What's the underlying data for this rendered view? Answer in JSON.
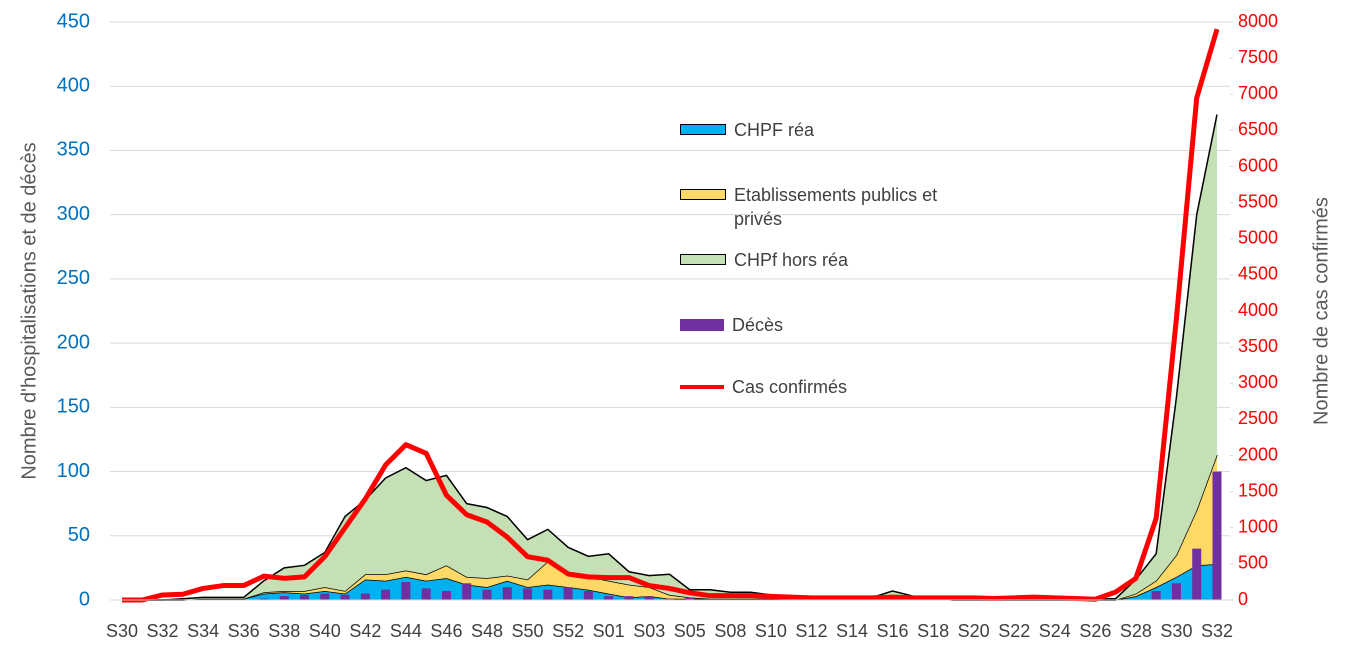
{
  "chart_data": {
    "type": "combo",
    "y_label": "Nombre d'hospitalisations et de décès",
    "y2_label": "Nombre de cas confirmés",
    "categories": [
      "S30",
      null,
      "S32",
      null,
      "S34",
      null,
      "S36",
      null,
      "S38",
      null,
      "S40",
      null,
      "S42",
      null,
      "S44",
      null,
      "S46",
      null,
      "S48",
      null,
      "S50",
      null,
      "S52",
      null,
      "S01",
      null,
      "S03",
      null,
      "S05",
      null,
      "S08",
      null,
      "S10",
      null,
      "S12",
      null,
      "S14",
      null,
      "S16",
      null,
      "S18",
      null,
      "S20",
      null,
      "S22",
      null,
      "S24",
      null,
      "S26",
      null,
      "S28",
      null,
      "S30",
      null,
      "S32"
    ],
    "ylim": [
      0,
      450
    ],
    "yticks": [
      0,
      50,
      100,
      150,
      200,
      250,
      300,
      350,
      400,
      450
    ],
    "y2lim": [
      0,
      8000
    ],
    "y2ticks": [
      0,
      500,
      1000,
      1500,
      2000,
      2500,
      3000,
      3500,
      4000,
      4500,
      5000,
      5500,
      6000,
      6500,
      7000,
      7500,
      8000
    ],
    "grid": true,
    "stacked": true,
    "series": [
      {
        "name": "CHPF réa",
        "type": "area",
        "color": "#00b0f0",
        "values": [
          0,
          0,
          0,
          0,
          1,
          1,
          1,
          5,
          6,
          5,
          7,
          5,
          16,
          15,
          18,
          15,
          17,
          12,
          10,
          15,
          10,
          12,
          10,
          8,
          5,
          2,
          3,
          1,
          1,
          1,
          1,
          1,
          1,
          1,
          1,
          1,
          1,
          1,
          1,
          1,
          1,
          0,
          0,
          0,
          0,
          0,
          0,
          0,
          0,
          0,
          3,
          10,
          18,
          27,
          28
        ]
      },
      {
        "name": "Etablissements publics et privés",
        "type": "area",
        "color": "#ffd966",
        "values": [
          0,
          0,
          0,
          0,
          0,
          0,
          0,
          1,
          1,
          2,
          3,
          2,
          4,
          5,
          5,
          5,
          10,
          6,
          7,
          4,
          6,
          18,
          10,
          10,
          10,
          10,
          7,
          3,
          1,
          0,
          0,
          0,
          0,
          0,
          0,
          0,
          0,
          0,
          0,
          0,
          0,
          0,
          0,
          0,
          0,
          0,
          0,
          0,
          0,
          0,
          2,
          5,
          17,
          43,
          85
        ]
      },
      {
        "name": "CHPf hors réa",
        "type": "area",
        "color": "#c5e0b4",
        "values": [
          0,
          0,
          0,
          1,
          1,
          1,
          1,
          9,
          18,
          20,
          27,
          58,
          58,
          75,
          80,
          73,
          70,
          57,
          55,
          46,
          31,
          25,
          21,
          16,
          21,
          10,
          9,
          16,
          6,
          7,
          5,
          5,
          3,
          2,
          1,
          1,
          1,
          1,
          6,
          2,
          1,
          1,
          1,
          1,
          1,
          1,
          1,
          1,
          1,
          1,
          11,
          21,
          123,
          230,
          265
        ]
      },
      {
        "name": "Décès",
        "type": "bar",
        "color": "#7030a0",
        "values": [
          0,
          0,
          0,
          0,
          0,
          0,
          0,
          1,
          3,
          4,
          5,
          4,
          5,
          8,
          14,
          9,
          7,
          13,
          8,
          10,
          9,
          8,
          10,
          7,
          3,
          3,
          3,
          1,
          2,
          0,
          0,
          0,
          0,
          0,
          0,
          0,
          0,
          0,
          0,
          0,
          0,
          0,
          0,
          0,
          0,
          0,
          0,
          0,
          0,
          0,
          0,
          7,
          13,
          40,
          100
        ]
      },
      {
        "name": "Cas confirmés",
        "type": "line",
        "axis": "y2",
        "color": "#ff0000",
        "values": [
          0,
          0,
          70,
          80,
          160,
          200,
          200,
          330,
          300,
          320,
          600,
          1000,
          1400,
          1870,
          2150,
          2030,
          1450,
          1180,
          1080,
          870,
          600,
          550,
          360,
          320,
          310,
          310,
          200,
          160,
          100,
          60,
          60,
          60,
          50,
          40,
          30,
          30,
          30,
          30,
          40,
          30,
          30,
          30,
          30,
          20,
          30,
          40,
          30,
          20,
          10,
          110,
          300,
          1130,
          3900,
          6950,
          7900
        ]
      }
    ]
  }
}
